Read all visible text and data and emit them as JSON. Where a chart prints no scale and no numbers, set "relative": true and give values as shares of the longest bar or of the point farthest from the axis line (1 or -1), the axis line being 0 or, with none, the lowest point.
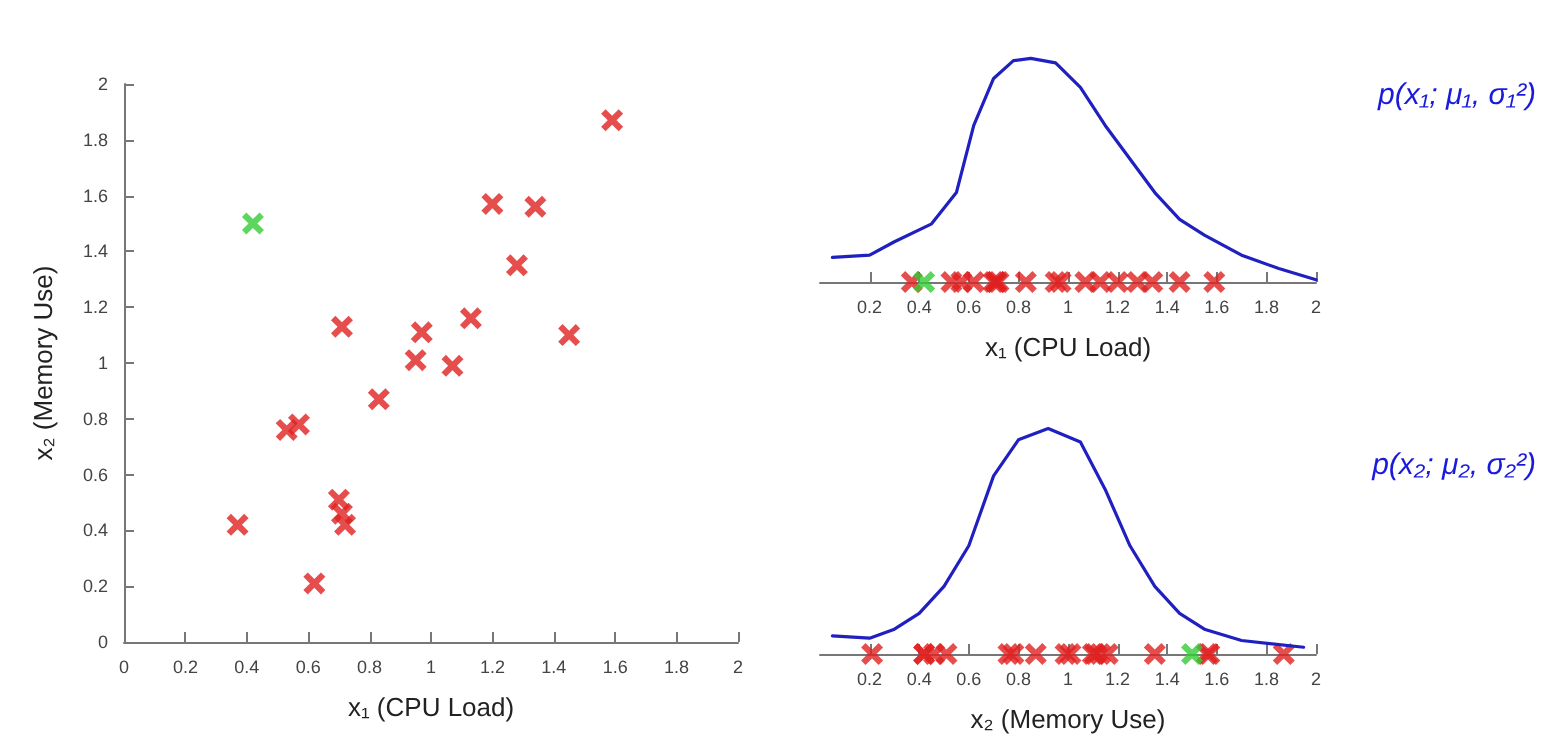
{
  "chart_data": [
    {
      "type": "scatter",
      "xlabel": "x₁ (CPU Load)",
      "ylabel": "x₂ (Memory Use)",
      "xlim": [
        0,
        2
      ],
      "ylim": [
        0,
        2
      ],
      "xticks": [
        0,
        0.2,
        0.4,
        0.6,
        0.8,
        1,
        1.2,
        1.4,
        1.6,
        1.8,
        2
      ],
      "yticks": [
        0,
        0.2,
        0.4,
        0.6,
        0.8,
        1,
        1.2,
        1.4,
        1.6,
        1.8,
        2
      ],
      "marker": "cross",
      "series": [
        {
          "color": "#e02020",
          "x": [
            0.37,
            0.53,
            0.57,
            0.62,
            0.71,
            0.7,
            0.71,
            0.72,
            0.83,
            0.95,
            0.97,
            1.07,
            1.13,
            1.2,
            1.28,
            1.34,
            1.45,
            1.59
          ],
          "values": [
            0.42,
            0.76,
            0.78,
            0.21,
            1.13,
            0.51,
            0.46,
            0.42,
            0.87,
            1.01,
            1.11,
            0.99,
            1.16,
            1.57,
            1.35,
            1.56,
            1.1,
            1.87
          ]
        },
        {
          "color": "#33cc33",
          "x": [
            0.42
          ],
          "values": [
            1.5
          ]
        }
      ]
    },
    {
      "type": "line",
      "relative": true,
      "xlabel": "x₁ (CPU Load)",
      "xlim": [
        0,
        2
      ],
      "xticks": [
        0.2,
        0.4,
        0.6,
        0.8,
        1,
        1.2,
        1.4,
        1.6,
        1.8,
        2
      ],
      "annotations": [
        "p(x₁; μ₁, σ₁²)"
      ],
      "series": [
        {
          "color": "#2020c0",
          "marker": "none",
          "x": [
            0.05,
            0.2,
            0.3,
            0.45,
            0.55,
            0.62,
            0.7,
            0.78,
            0.85,
            0.95,
            1.05,
            1.15,
            1.25,
            1.35,
            1.45,
            1.55,
            1.7,
            1.85,
            2
          ],
          "values": [
            0.11,
            0.12,
            0.18,
            0.26,
            0.4,
            0.7,
            0.91,
            0.99,
            1,
            0.98,
            0.87,
            0.7,
            0.55,
            0.4,
            0.28,
            0.21,
            0.12,
            0.06,
            0.01
          ]
        },
        {
          "type": "scatter",
          "color": "#e02020",
          "marker": "cross",
          "x": [
            0.37,
            0.53,
            0.57,
            0.62,
            0.71,
            0.7,
            0.71,
            0.72,
            0.83,
            0.95,
            0.97,
            1.07,
            1.13,
            1.2,
            1.28,
            1.34,
            1.45,
            1.59
          ],
          "values": [
            0,
            0,
            0,
            0,
            0,
            0,
            0,
            0,
            0,
            0,
            0,
            0,
            0,
            0,
            0,
            0,
            0,
            0
          ]
        },
        {
          "type": "scatter",
          "color": "#33cc33",
          "marker": "cross",
          "x": [
            0.42
          ],
          "values": [
            0
          ]
        }
      ]
    },
    {
      "type": "line",
      "relative": true,
      "xlabel": "x₂ (Memory Use)",
      "xlim": [
        0,
        2
      ],
      "xticks": [
        0.2,
        0.4,
        0.6,
        0.8,
        1,
        1.2,
        1.4,
        1.6,
        1.8,
        2
      ],
      "annotations": [
        "p(x₂; μ₂, σ₂²)"
      ],
      "series": [
        {
          "color": "#2020c0",
          "marker": "none",
          "x": [
            0.05,
            0.2,
            0.3,
            0.4,
            0.5,
            0.6,
            0.7,
            0.8,
            0.92,
            1.05,
            1.15,
            1.25,
            1.35,
            1.45,
            1.55,
            1.7,
            1.95
          ],
          "values": [
            0.08,
            0.07,
            0.11,
            0.18,
            0.3,
            0.48,
            0.79,
            0.95,
            1,
            0.94,
            0.73,
            0.48,
            0.3,
            0.18,
            0.11,
            0.06,
            0.03
          ]
        },
        {
          "type": "scatter",
          "color": "#e02020",
          "marker": "cross",
          "x": [
            0.42,
            0.76,
            0.78,
            0.21,
            1.13,
            0.51,
            0.46,
            0.42,
            0.87,
            1.01,
            1.11,
            0.99,
            1.16,
            1.57,
            1.35,
            1.56,
            1.1,
            1.87
          ],
          "values": [
            0,
            0,
            0,
            0,
            0,
            0,
            0,
            0,
            0,
            0,
            0,
            0,
            0,
            0,
            0,
            0,
            0,
            0
          ]
        },
        {
          "type": "scatter",
          "color": "#33cc33",
          "marker": "cross",
          "x": [
            1.5
          ],
          "values": [
            0
          ]
        }
      ]
    }
  ]
}
